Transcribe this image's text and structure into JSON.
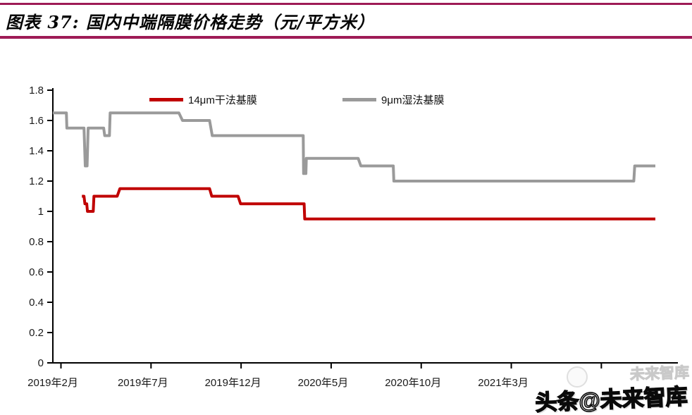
{
  "header": {
    "title": "图表 37: 国内中端隔膜价格走势（元/平方米）"
  },
  "legend": {
    "items": [
      {
        "label": "14μm干法基膜",
        "color": "#C00000"
      },
      {
        "label": "9μm湿法基膜",
        "color": "#9A9A9A"
      }
    ]
  },
  "chart_data": {
    "type": "line",
    "title": "国内中端隔膜价格走势",
    "unit": "元/平方米",
    "x_unit": "months since 2019-02",
    "xlim": [
      0,
      34.7
    ],
    "ylim": [
      0,
      1.8
    ],
    "grid": false,
    "legend_position": "top",
    "xticks": [
      {
        "m": 0,
        "label": "2019年2月"
      },
      {
        "m": 5,
        "label": "2019年7月"
      },
      {
        "m": 10,
        "label": "2019年12月"
      },
      {
        "m": 15,
        "label": "2020年5月"
      },
      {
        "m": 20,
        "label": "2020年10月"
      },
      {
        "m": 25,
        "label": "2021年3月"
      },
      {
        "m": 30,
        "label": ""
      }
    ],
    "yticks": [
      {
        "v": 1.8,
        "label": "1.8"
      },
      {
        "v": 1.6,
        "label": "1.6"
      },
      {
        "v": 1.4,
        "label": "1.4"
      },
      {
        "v": 1.2,
        "label": "1.2"
      },
      {
        "v": 1.0,
        "label": "1"
      },
      {
        "v": 0.8,
        "label": "0.8"
      },
      {
        "v": 0.6,
        "label": "0.6"
      },
      {
        "v": 0.4,
        "label": "0.4"
      },
      {
        "v": 0.2,
        "label": "0.2"
      },
      {
        "v": 0.0,
        "label": "0"
      }
    ],
    "series": [
      {
        "name": "14μm干法基膜",
        "color": "#C00000",
        "points": [
          [
            1.61,
            1.1
          ],
          [
            1.73,
            1.1
          ],
          [
            1.78,
            1.05
          ],
          [
            1.88,
            1.05
          ],
          [
            1.92,
            1.0
          ],
          [
            2.24,
            1.0
          ],
          [
            2.28,
            1.1
          ],
          [
            3.57,
            1.1
          ],
          [
            3.72,
            1.15
          ],
          [
            8.7,
            1.15
          ],
          [
            8.82,
            1.1
          ],
          [
            10.28,
            1.1
          ],
          [
            10.42,
            1.05
          ],
          [
            13.95,
            1.05
          ],
          [
            13.98,
            0.95
          ],
          [
            33.45,
            0.95
          ]
        ]
      },
      {
        "name": "9μm湿法基膜",
        "color": "#9A9A9A",
        "points": [
          [
            0.0,
            1.65
          ],
          [
            0.75,
            1.65
          ],
          [
            0.78,
            1.55
          ],
          [
            1.73,
            1.55
          ],
          [
            1.8,
            1.3
          ],
          [
            1.9,
            1.3
          ],
          [
            1.96,
            1.55
          ],
          [
            2.82,
            1.55
          ],
          [
            2.88,
            1.5
          ],
          [
            3.14,
            1.5
          ],
          [
            3.18,
            1.65
          ],
          [
            7.0,
            1.65
          ],
          [
            7.2,
            1.6
          ],
          [
            8.7,
            1.6
          ],
          [
            8.85,
            1.5
          ],
          [
            13.9,
            1.5
          ],
          [
            13.92,
            1.25
          ],
          [
            14.05,
            1.25
          ],
          [
            14.07,
            1.35
          ],
          [
            16.95,
            1.35
          ],
          [
            17.1,
            1.3
          ],
          [
            18.9,
            1.3
          ],
          [
            18.93,
            1.2
          ],
          [
            32.25,
            1.2
          ],
          [
            32.3,
            1.3
          ],
          [
            33.45,
            1.3
          ]
        ]
      }
    ]
  },
  "watermark": {
    "text": "头条@未来智库",
    "ghost_text": "未来智库"
  },
  "colors": {
    "accent_border": "#9E1B56",
    "axis": "#000000",
    "dry_line": "#C00000",
    "wet_line": "#9A9A9A"
  }
}
